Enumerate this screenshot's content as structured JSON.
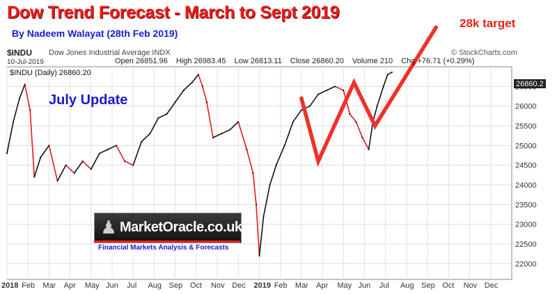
{
  "header": {
    "title": "Dow Trend Forecast - March to Sept 2019",
    "byline": "By Nadeem Walayat  (28th Feb 2019)",
    "target_label": "28k target"
  },
  "stock": {
    "symbol": "$INDU",
    "description": "Dow Jones Industrial Average INDX",
    "date": "10-Jul-2019",
    "open": "Open 26851.96",
    "high": "High 26983.45",
    "low": "Low 26813.11",
    "close": "Close 26860.20",
    "volume": "Volume 210",
    "change": "Chg +76.71 (+0.29%)",
    "source": "© StockCharts.com",
    "legend": "$INDU (Daily) 26860.20",
    "last_value": "26860.2"
  },
  "logo": {
    "name": "MarketOracle.co.uk",
    "tagline": "Financial Markets Analysis & Forecasts"
  },
  "chart_data": {
    "type": "line",
    "title": "",
    "annotation": "July Update",
    "colors": {
      "up": "#111111",
      "down": "#e21b1b",
      "forecast": "#f0302a"
    },
    "grid": true,
    "ylim": [
      21600,
      27000
    ],
    "yticks": [
      22000,
      22500,
      23000,
      23500,
      24000,
      24500,
      25000,
      25500,
      26000,
      26500
    ],
    "ytick_labels": [
      "22000",
      "22500",
      "23000",
      "23500",
      "24000",
      "24500",
      "25000",
      "25500",
      "26000",
      "26500"
    ],
    "xticks": [
      0,
      1,
      2,
      3,
      4,
      5,
      6,
      7,
      8,
      9,
      10,
      11,
      12,
      13,
      14,
      15,
      16,
      17,
      18,
      19,
      20,
      21,
      22,
      23
    ],
    "xtick_labels": [
      "2018",
      "Feb",
      "Mar",
      "Apr",
      "May",
      "Jun",
      "Jul",
      "Aug",
      "Sep",
      "Oct",
      "Nov",
      "Dec",
      "2019",
      "Feb",
      "Mar",
      "Apr",
      "May",
      "Jun",
      "Jul",
      "Aug",
      "Sep",
      "Oct",
      "Nov",
      "Dec"
    ],
    "x": [
      0,
      0.3,
      0.6,
      0.85,
      1.1,
      1.3,
      1.6,
      2.0,
      2.4,
      2.8,
      3.2,
      3.6,
      4.0,
      4.4,
      4.8,
      5.2,
      5.6,
      6.0,
      6.4,
      6.8,
      7.2,
      7.6,
      8.0,
      8.4,
      8.8,
      9.1,
      9.3,
      9.5,
      9.8,
      10.2,
      10.6,
      11.0,
      11.4,
      11.7,
      11.85,
      12.0,
      12.2,
      12.5,
      12.8,
      13.2,
      13.6,
      14.0,
      14.4,
      14.8,
      15.2,
      15.6,
      16.0,
      16.3,
      16.6,
      16.9,
      17.2,
      17.4,
      17.6,
      17.9,
      18.1,
      18.3
    ],
    "y": [
      24800,
      25600,
      26200,
      26550,
      25900,
      24200,
      24700,
      25000,
      24100,
      24500,
      24300,
      24600,
      24400,
      24800,
      24900,
      25000,
      24600,
      24500,
      25100,
      25300,
      25700,
      25800,
      26100,
      26400,
      26600,
      26800,
      26500,
      26100,
      25200,
      25300,
      25400,
      25600,
      24900,
      24300,
      23500,
      22200,
      23200,
      24000,
      24500,
      25000,
      25600,
      25900,
      26000,
      26300,
      26400,
      26500,
      26400,
      25800,
      25600,
      25200,
      24900,
      25600,
      26000,
      26500,
      26800,
      26860
    ],
    "forecast": {
      "x": [
        14.0,
        14.8,
        16.5,
        17.5,
        20.4
      ],
      "y": [
        26200,
        24600,
        26600,
        25500,
        28000
      ]
    }
  }
}
